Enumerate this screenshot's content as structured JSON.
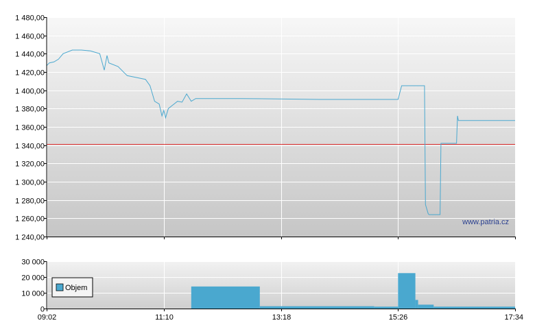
{
  "chart_data": [
    {
      "type": "line",
      "title": "",
      "xlabel": "",
      "ylabel": "",
      "watermark": "www.patria.cz",
      "ylim": [
        1240,
        1480
      ],
      "yticks": [
        "1 240,00",
        "1 260,00",
        "1 280,00",
        "1 300,00",
        "1 320,00",
        "1 340,00",
        "1 360,00",
        "1 380,00",
        "1 400,00",
        "1 420,00",
        "1 440,00",
        "1 460,00",
        "1 480,00"
      ],
      "reference_line": {
        "value": 1341,
        "color": "#e03030"
      },
      "grid": true,
      "line_color": "#4aa8cf",
      "series": [
        {
          "x": [
            "09:02",
            "09:05",
            "09:10",
            "09:15",
            "09:20",
            "09:30",
            "09:40",
            "09:50",
            "10:00",
            "10:05",
            "10:08",
            "10:10",
            "10:20",
            "10:30",
            "10:40",
            "10:50",
            "10:55",
            "11:00",
            "11:05",
            "11:08",
            "11:10",
            "11:12",
            "11:15",
            "11:20",
            "11:25",
            "11:30",
            "11:35",
            "11:40",
            "11:45",
            "11:55",
            "12:35",
            "14:00",
            "15:26",
            "15:30",
            "15:55",
            "15:56",
            "15:59",
            "16:00",
            "16:12",
            "16:13",
            "16:30",
            "16:31",
            "16:32",
            "16:35",
            "17:34"
          ],
          "values": [
            1427,
            1430,
            1431,
            1434,
            1440,
            1444,
            1444,
            1443,
            1440,
            1422,
            1438,
            1430,
            1426,
            1416,
            1414,
            1412,
            1405,
            1388,
            1385,
            1372,
            1378,
            1370,
            1380,
            1384,
            1388,
            1387,
            1396,
            1388,
            1391,
            1391,
            1391,
            1390,
            1390,
            1405,
            1405,
            1275,
            1265,
            1264,
            1264,
            1342,
            1342,
            1372,
            1367,
            1367,
            1367
          ]
        }
      ]
    },
    {
      "type": "bar",
      "title": "",
      "ylim": [
        0,
        30000
      ],
      "yticks": [
        "0",
        "10 000",
        "20 000",
        "30 000"
      ],
      "xticks": [
        "09:02",
        "11:10",
        "13:18",
        "15:26",
        "17:34"
      ],
      "legend": {
        "label": "Objem",
        "placement": "left"
      },
      "bar_color": "#4aa8cf",
      "grid": true,
      "series": [
        {
          "name": "Objem",
          "bins": [
            {
              "start": "11:40",
              "end": "12:55",
              "value": 14000
            },
            {
              "start": "12:55",
              "end": "15:00",
              "value": 1500
            },
            {
              "start": "15:00",
              "end": "15:26",
              "value": 1200
            },
            {
              "start": "15:26",
              "end": "15:45",
              "value": 22500
            },
            {
              "start": "15:45",
              "end": "15:48",
              "value": 5500
            },
            {
              "start": "15:48",
              "end": "16:05",
              "value": 2500
            },
            {
              "start": "16:05",
              "end": "17:34",
              "value": 1200
            }
          ]
        }
      ]
    }
  ]
}
